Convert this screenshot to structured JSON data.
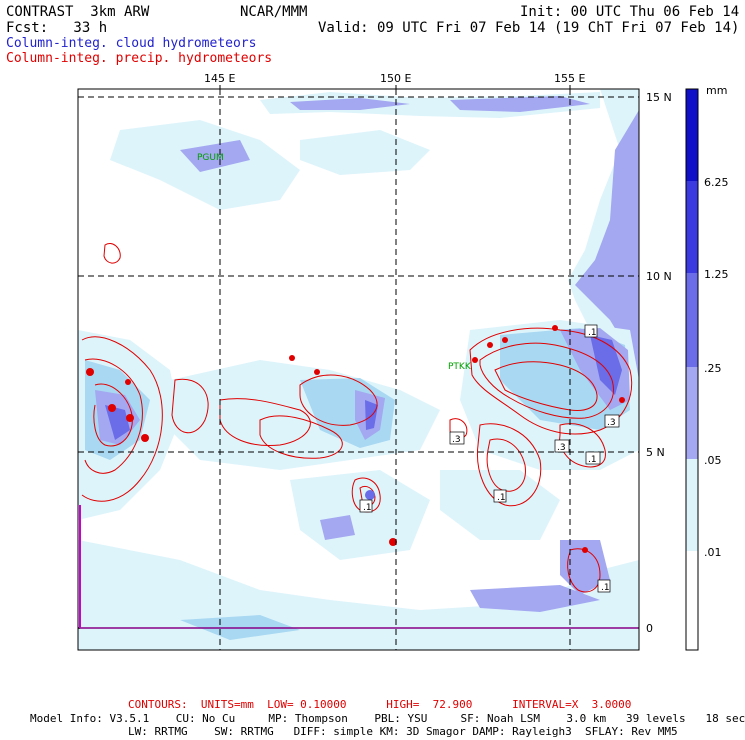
{
  "header": {
    "model": "CONTRAST  3km ARW",
    "center": "NCAR/MMM",
    "init": "Init: 00 UTC Thu 06 Feb 14",
    "fcst": "Fcst:   33 h",
    "valid": "Valid: 09 UTC Fri 07 Feb 14 (19 ChT Fri 07 Feb 14)"
  },
  "legend": {
    "cloud_label": "Column-integ. cloud hydrometeors",
    "precip_label": "Column-integ. precip. hydrometeors",
    "cloud_color": "#2222cc",
    "precip_color": "#e00000"
  },
  "map": {
    "lon_labels": [
      "145 E",
      "150 E",
      "155 E"
    ],
    "lat_labels": [
      "15 N",
      "10 N",
      "5 N",
      "0"
    ],
    "stations": [
      "PGUM",
      "PTKK"
    ],
    "contour_labels": [
      ".1",
      ".3",
      ".1",
      ".3",
      ".3",
      ".1",
      ".1",
      ".1"
    ],
    "shade_colors": [
      "#ffffff",
      "#ddf4fb",
      "#a9d8f2",
      "#a3a8f0",
      "#6a6ce8",
      "#3a3ae0",
      "#1010c8"
    ]
  },
  "colorbar": {
    "unit": "mm",
    "labels": [
      "6.25",
      "1.25",
      ".25",
      ".05",
      ".01"
    ]
  },
  "footer": {
    "contours_line": "CONTOURS:  UNITS=mm  LOW= 0.10000      HIGH=  72.900      INTERVAL=X  3.0000",
    "model_info_1": "Model Info: V3.5.1    CU: No Cu     MP: Thompson    PBL: YSU     SF: Noah LSM    3.0 km   39 levels   18 sec",
    "model_info_2": "LW: RRTMG    SW: RRTMG   DIFF: simple KM: 3D Smagor DAMP: Rayleigh3  SFLAY: Rev MM5"
  }
}
